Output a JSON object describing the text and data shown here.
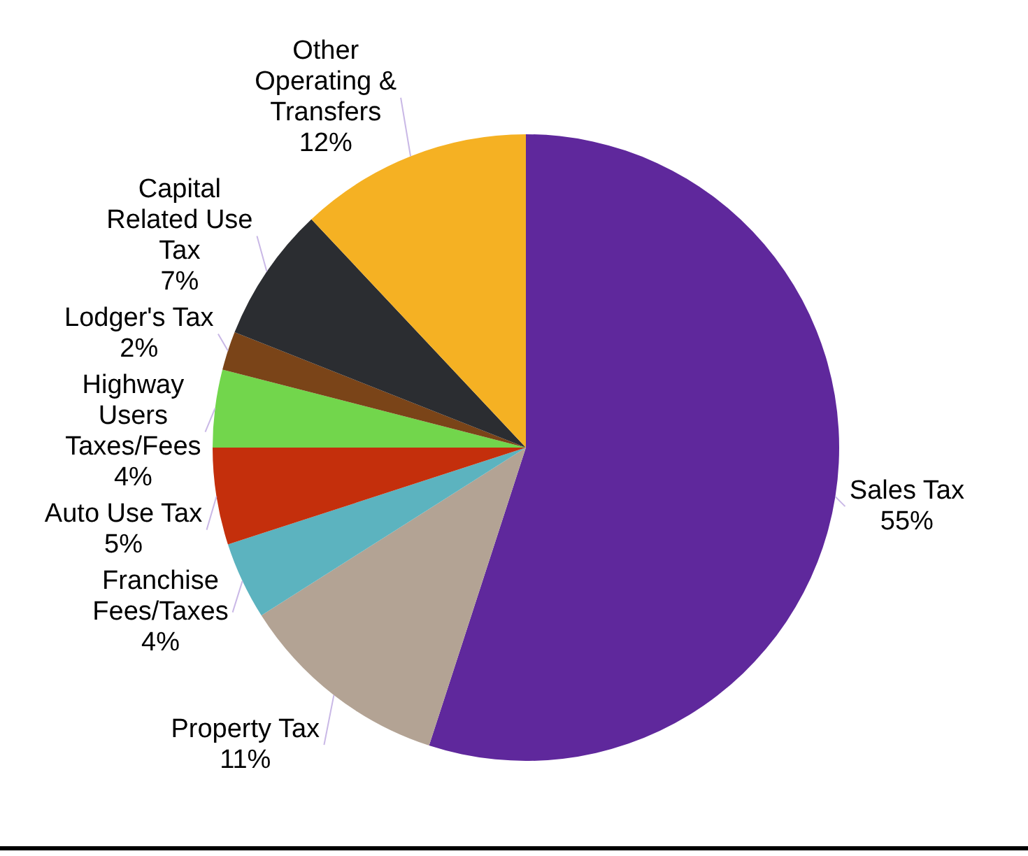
{
  "chart_data": {
    "type": "pie",
    "categories": [
      "Sales Tax",
      "Property Tax",
      "Franchise Fees/Taxes",
      "Auto Use Tax",
      "Highway Users Taxes/Fees",
      "Lodger's Tax",
      "Capital Related Use Tax",
      "Other Operating & Transfers"
    ],
    "values": [
      55,
      11,
      4,
      5,
      4,
      2,
      7,
      12
    ],
    "value_labels": [
      "55%",
      "11%",
      "4%",
      "5%",
      "4%",
      "2%",
      "7%",
      "12%"
    ],
    "colors": [
      "#5f289c",
      "#b3a394",
      "#5cb3bf",
      "#c42f0c",
      "#72d64c",
      "#7a4418",
      "#2b2d31",
      "#f5b123"
    ],
    "legend": false
  }
}
